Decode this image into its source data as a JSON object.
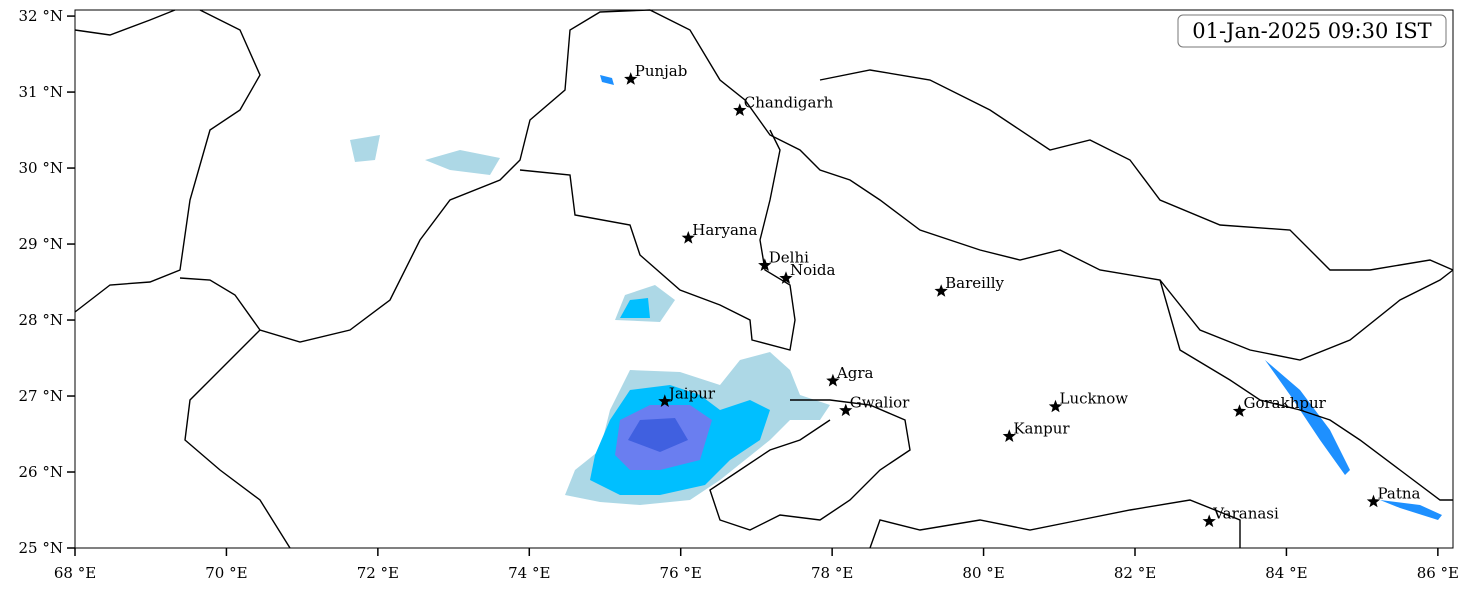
{
  "map": {
    "timestamp": "01-Jan-2025 09:30 IST",
    "xlim": [
      68,
      86.2
    ],
    "ylim": [
      25,
      32.08
    ],
    "xticks": [
      {
        "value": 68,
        "label": "68 °E"
      },
      {
        "value": 70,
        "label": "70 °E"
      },
      {
        "value": 72,
        "label": "72 °E"
      },
      {
        "value": 74,
        "label": "74 °E"
      },
      {
        "value": 76,
        "label": "76 °E"
      },
      {
        "value": 78,
        "label": "78 °E"
      },
      {
        "value": 80,
        "label": "80 °E"
      },
      {
        "value": 82,
        "label": "82 °E"
      },
      {
        "value": 84,
        "label": "84 °E"
      },
      {
        "value": 86,
        "label": "86 °E"
      }
    ],
    "yticks": [
      {
        "value": 25,
        "label": "25 °N"
      },
      {
        "value": 26,
        "label": "26 °N"
      },
      {
        "value": 27,
        "label": "27 °N"
      },
      {
        "value": 28,
        "label": "28 °N"
      },
      {
        "value": 29,
        "label": "29 °N"
      },
      {
        "value": 30,
        "label": "30 °N"
      },
      {
        "value": 31,
        "label": "31 °N"
      },
      {
        "value": 32,
        "label": "32 °N"
      }
    ],
    "cities": [
      {
        "name": "Punjab",
        "lon": 75.34,
        "lat": 31.17
      },
      {
        "name": "Chandigarh",
        "lon": 76.78,
        "lat": 30.76
      },
      {
        "name": "Haryana",
        "lon": 76.1,
        "lat": 29.08
      },
      {
        "name": "Delhi",
        "lon": 77.11,
        "lat": 28.72
      },
      {
        "name": "Noida",
        "lon": 77.39,
        "lat": 28.55
      },
      {
        "name": "Bareilly",
        "lon": 79.44,
        "lat": 28.38
      },
      {
        "name": "Agra",
        "lon": 78.01,
        "lat": 27.2
      },
      {
        "name": "Jaipur",
        "lon": 75.79,
        "lat": 26.93
      },
      {
        "name": "Gwalior",
        "lon": 78.18,
        "lat": 26.81
      },
      {
        "name": "Lucknow",
        "lon": 80.95,
        "lat": 26.86
      },
      {
        "name": "Kanpur",
        "lon": 80.34,
        "lat": 26.47
      },
      {
        "name": "Gorakhpur",
        "lon": 83.38,
        "lat": 26.8
      },
      {
        "name": "Varanasi",
        "lon": 82.98,
        "lat": 25.35
      },
      {
        "name": "Patna",
        "lon": 85.15,
        "lat": 25.61
      }
    ]
  }
}
